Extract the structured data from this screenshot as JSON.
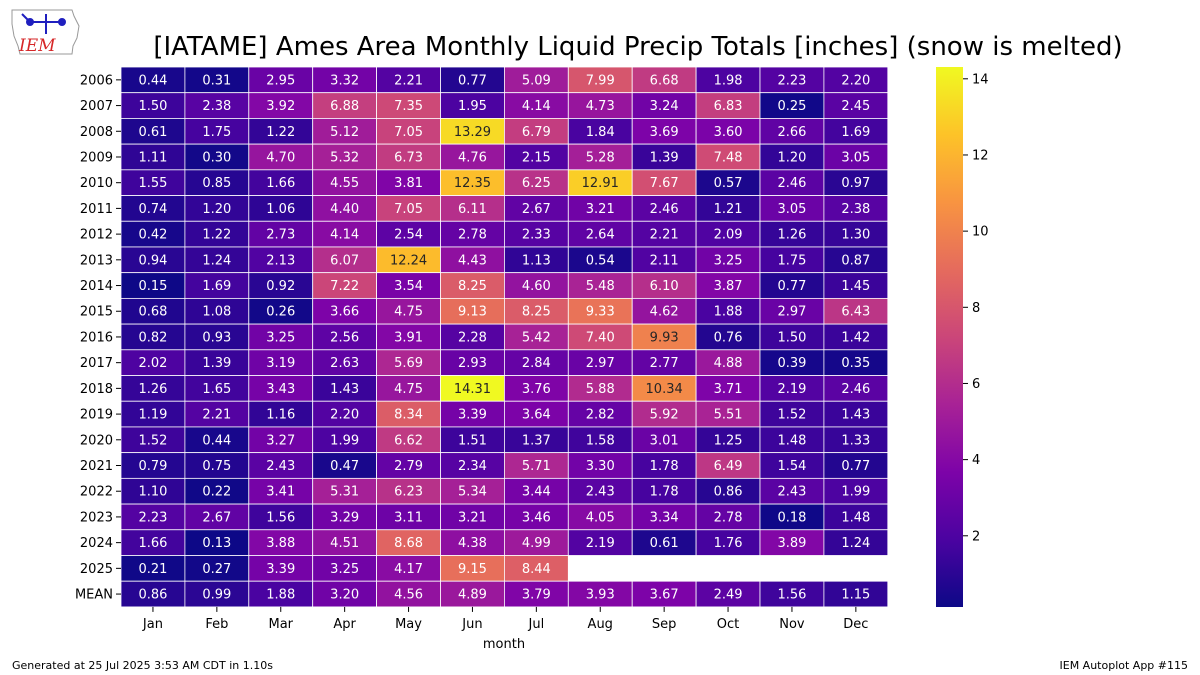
{
  "logo": {
    "text": "IEM",
    "color": "#d62728",
    "icon": "iowa-state-outline-icon"
  },
  "footer": {
    "generated": "Generated at 25 Jul 2025 3:53 AM CDT in 1.10s",
    "app": "IEM Autoplot App #115"
  },
  "chart_data": {
    "type": "heatmap",
    "title": "[IATAME] Ames Area Monthly Liquid Precip Totals [inches] (snow is melted)",
    "xlabel": "month",
    "ylabel": "",
    "colormap": "plasma",
    "vmin": 0.13,
    "vmax": 14.31,
    "colorbar_ticks": [
      "2",
      "4",
      "6",
      "8",
      "10",
      "12",
      "14"
    ],
    "colorbar_tick_values": [
      2,
      4,
      6,
      8,
      10,
      12,
      14
    ],
    "columns": [
      "Jan",
      "Feb",
      "Mar",
      "Apr",
      "May",
      "Jun",
      "Jul",
      "Aug",
      "Sep",
      "Oct",
      "Nov",
      "Dec"
    ],
    "rows": [
      "2006",
      "2007",
      "2008",
      "2009",
      "2010",
      "2011",
      "2012",
      "2013",
      "2014",
      "2015",
      "2016",
      "2017",
      "2018",
      "2019",
      "2020",
      "2021",
      "2022",
      "2023",
      "2024",
      "2025",
      "MEAN"
    ],
    "values": [
      [
        "0.44",
        "0.31",
        "2.95",
        "3.32",
        "2.21",
        "0.77",
        "5.09",
        "7.99",
        "6.68",
        "1.98",
        "2.23",
        "2.20"
      ],
      [
        "1.50",
        "2.38",
        "3.92",
        "6.88",
        "7.35",
        "1.95",
        "4.14",
        "4.73",
        "3.24",
        "6.83",
        "0.25",
        "2.45"
      ],
      [
        "0.61",
        "1.75",
        "1.22",
        "5.12",
        "7.05",
        "13.29",
        "6.79",
        "1.84",
        "3.69",
        "3.60",
        "2.66",
        "1.69"
      ],
      [
        "1.11",
        "0.30",
        "4.70",
        "5.32",
        "6.73",
        "4.76",
        "2.15",
        "5.28",
        "1.39",
        "7.48",
        "1.20",
        "3.05"
      ],
      [
        "1.55",
        "0.85",
        "1.66",
        "4.55",
        "3.81",
        "12.35",
        "6.25",
        "12.91",
        "7.67",
        "0.57",
        "2.46",
        "0.97"
      ],
      [
        "0.74",
        "1.20",
        "1.06",
        "4.40",
        "7.05",
        "6.11",
        "2.67",
        "3.21",
        "2.46",
        "1.21",
        "3.05",
        "2.38"
      ],
      [
        "0.42",
        "1.22",
        "2.73",
        "4.14",
        "2.54",
        "2.78",
        "2.33",
        "2.64",
        "2.21",
        "2.09",
        "1.26",
        "1.30"
      ],
      [
        "0.94",
        "1.24",
        "2.13",
        "6.07",
        "12.24",
        "4.43",
        "1.13",
        "0.54",
        "2.11",
        "3.25",
        "1.75",
        "0.87"
      ],
      [
        "0.15",
        "1.69",
        "0.92",
        "7.22",
        "3.54",
        "8.25",
        "4.60",
        "5.48",
        "6.10",
        "3.87",
        "0.77",
        "1.45"
      ],
      [
        "0.68",
        "1.08",
        "0.26",
        "3.66",
        "4.75",
        "9.13",
        "8.25",
        "9.33",
        "4.62",
        "1.88",
        "2.97",
        "6.43"
      ],
      [
        "0.82",
        "0.93",
        "3.25",
        "2.56",
        "3.91",
        "2.28",
        "5.42",
        "7.40",
        "9.93",
        "0.76",
        "1.50",
        "1.42"
      ],
      [
        "2.02",
        "1.39",
        "3.19",
        "2.63",
        "5.69",
        "2.93",
        "2.84",
        "2.97",
        "2.77",
        "4.88",
        "0.39",
        "0.35"
      ],
      [
        "1.26",
        "1.65",
        "3.43",
        "1.43",
        "4.75",
        "14.31",
        "3.76",
        "5.88",
        "10.34",
        "3.71",
        "2.19",
        "2.46"
      ],
      [
        "1.19",
        "2.21",
        "1.16",
        "2.20",
        "8.34",
        "3.39",
        "3.64",
        "2.82",
        "5.92",
        "5.51",
        "1.52",
        "1.43"
      ],
      [
        "1.52",
        "0.44",
        "3.27",
        "1.99",
        "6.62",
        "1.51",
        "1.37",
        "1.58",
        "3.01",
        "1.25",
        "1.48",
        "1.33"
      ],
      [
        "0.79",
        "0.75",
        "2.43",
        "0.47",
        "2.79",
        "2.34",
        "5.71",
        "3.30",
        "1.78",
        "6.49",
        "1.54",
        "0.77"
      ],
      [
        "1.10",
        "0.22",
        "3.41",
        "5.31",
        "6.23",
        "5.34",
        "3.44",
        "2.43",
        "1.78",
        "0.86",
        "2.43",
        "1.99"
      ],
      [
        "2.23",
        "2.67",
        "1.56",
        "3.29",
        "3.11",
        "3.21",
        "3.46",
        "4.05",
        "3.34",
        "2.78",
        "0.18",
        "1.48"
      ],
      [
        "1.66",
        "0.13",
        "3.88",
        "4.51",
        "8.68",
        "4.38",
        "4.99",
        "2.19",
        "0.61",
        "1.76",
        "3.89",
        "1.24"
      ],
      [
        "0.21",
        "0.27",
        "3.39",
        "3.25",
        "4.17",
        "9.15",
        "8.44",
        null,
        null,
        null,
        null,
        null
      ],
      [
        "0.86",
        "0.99",
        "1.88",
        "3.20",
        "4.56",
        "4.89",
        "3.79",
        "3.93",
        "3.67",
        "2.49",
        "1.56",
        "1.15"
      ]
    ]
  }
}
